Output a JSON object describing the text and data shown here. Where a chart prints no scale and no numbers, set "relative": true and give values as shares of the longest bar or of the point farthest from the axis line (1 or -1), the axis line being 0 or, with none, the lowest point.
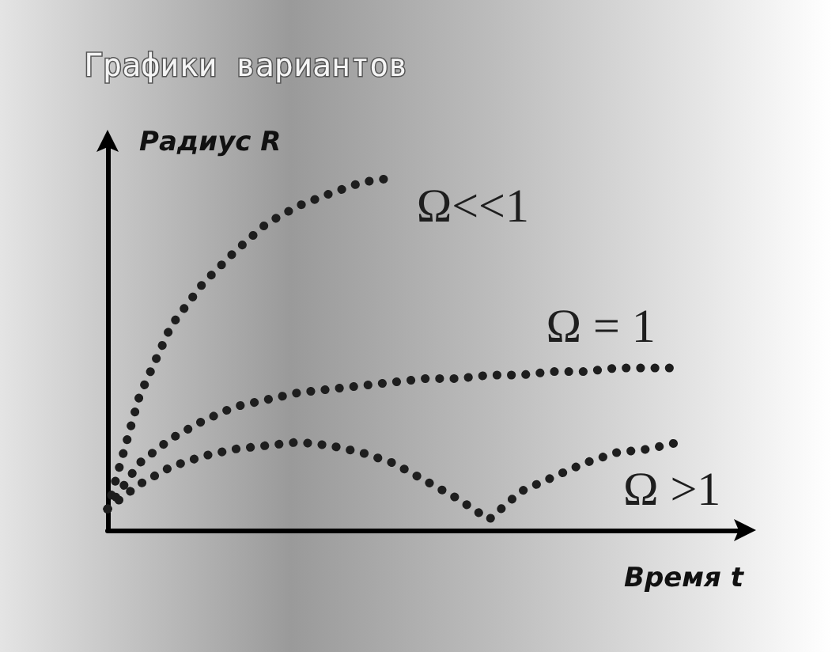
{
  "chart_data": {
    "type": "line",
    "title": "Графики вариантов",
    "xlabel": "Время t",
    "ylabel": "Радиус R",
    "relative": true,
    "legend": false,
    "grid": false,
    "marker": "none",
    "line_style": "dotted",
    "categories": [
      null,
      null,
      null,
      null,
      null,
      null,
      null,
      null,
      null,
      null,
      null,
      null,
      null,
      null,
      null,
      null,
      null,
      null,
      null,
      null,
      null
    ],
    "series": [
      {
        "name": "Ω<<1",
        "color": "#1e1e1e",
        "values": [
          0.06,
          0.38,
          0.58,
          0.7,
          0.79,
          0.87,
          0.92,
          0.955,
          0.987,
          1,
          null,
          null,
          null,
          null,
          null,
          null,
          null,
          null,
          null,
          null,
          null
        ]
      },
      {
        "name": "Ω = 1",
        "color": "#1e1e1e",
        "values": [
          0.06,
          0.19,
          0.26,
          0.31,
          0.35,
          0.37,
          0.39,
          0.4,
          0.41,
          0.42,
          0.43,
          0.43,
          0.44,
          0.44,
          0.45,
          0.45,
          0.46,
          0.46,
          0.46,
          null,
          null
        ]
      },
      {
        "name": "Ω >1",
        "color": "#1e1e1e",
        "values": [
          0.06,
          0.13,
          0.18,
          0.21,
          0.23,
          0.24,
          0.25,
          0.24,
          0.22,
          0.19,
          0.14,
          0.09,
          0.03,
          0.11,
          0.15,
          0.19,
          0.22,
          0.23,
          0.25,
          null,
          null
        ]
      }
    ]
  }
}
